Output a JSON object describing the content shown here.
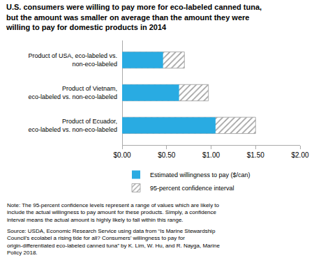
{
  "chart_data": {
    "type": "bar",
    "orientation": "horizontal",
    "title": "U.S. consumers were willing to pay more for eco-labeled canned tuna,\nbut the amount was smaller on average than the amount they were\nwilling to pay for domestic products in 2014",
    "categories": [
      "Product of USA, eco-labeled vs.\nnon-eco-labeled",
      "Product of Vietnam,\neco-labeled vs. non-eco-labeled",
      "Product of Ecuador,\neco-labeled vs. non-eco-labeled"
    ],
    "series": [
      {
        "name": "Estimated willingness to pay ($/can)",
        "color": "#29ABE2",
        "values": [
          0.46,
          0.64,
          1.05
        ]
      },
      {
        "name": "95-percent confidence interval",
        "color": "#999999",
        "marker": "hatched",
        "values": [
          0.7,
          0.97,
          1.5
        ]
      }
    ],
    "xlim": [
      0.0,
      2.0
    ],
    "xticks": [
      {
        "value": 0.0,
        "label": "$0.00"
      },
      {
        "value": 0.5,
        "label": "$0.50"
      },
      {
        "value": 1.0,
        "label": "$1.00"
      },
      {
        "value": 1.5,
        "label": "$1.50"
      },
      {
        "value": 2.0,
        "label": "$2.00"
      }
    ],
    "grid": false,
    "legend": "bottom",
    "annotations": [
      "Note: The 95-percent confidence levels represent a range of values which are likely to\ninclude the actual willingness to pay amount for these products. Simply, a confidence\ninterval means the actual amount is highly likely to fall within this range.",
      "Source: USDA, Economic Research Service using data from “Is Marine Stewardship\nCouncil’s ecolabel a rising tide for all? Consumers’ willingness to pay for\norigin-differentiated eco-labeled canned tuna” by K. Lim, W. Hu, and R. Nayga, Marine\nPolicy 2018."
    ]
  }
}
